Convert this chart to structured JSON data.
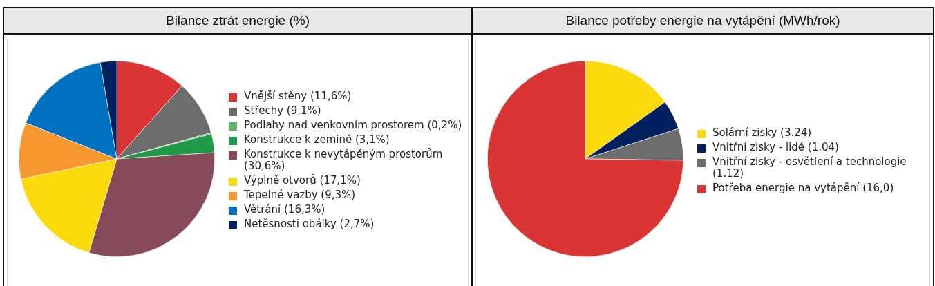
{
  "chart_data": [
    {
      "type": "pie",
      "title": "Bilance ztrát energie (%)",
      "legend": "right",
      "categories": [
        "Vnější stěny (11,6%)",
        "Střechy (9,1%)",
        "Podlahy nad venkovním prostorem (0,2%)",
        "Konstrukce k zemině (3,1%)",
        "Konstrukce k nevytápěným prostorům (30,6%)",
        "Výplně otvorů (17,1%)",
        "Tepelné vazby (9,3%)",
        "Větrání (16,3%)",
        "Netěsnosti obálky (2,7%)"
      ],
      "values": [
        11.6,
        9.1,
        0.2,
        3.1,
        30.6,
        17.1,
        9.3,
        16.3,
        2.7
      ],
      "colors": [
        "#d93535",
        "#6d6d6d",
        "#5fb36f",
        "#1e9a48",
        "#864a58",
        "#fcd90a",
        "#f7972f",
        "#0070c0",
        "#002060"
      ]
    },
    {
      "type": "pie",
      "title": "Bilance potřeby energie na vytápění (MWh/rok)",
      "legend": "right",
      "categories": [
        "Solární zisky (3.24)",
        "Vnitřní zisky - lidé (1.04)",
        "Vnitřní zisky - osvětlení a technologie (1.12)",
        "Potřeba energie na vytápění (16,0)"
      ],
      "values": [
        3.24,
        1.04,
        1.12,
        16.0
      ],
      "colors": [
        "#fcd90a",
        "#002060",
        "#6d6d6d",
        "#d93535"
      ]
    }
  ]
}
